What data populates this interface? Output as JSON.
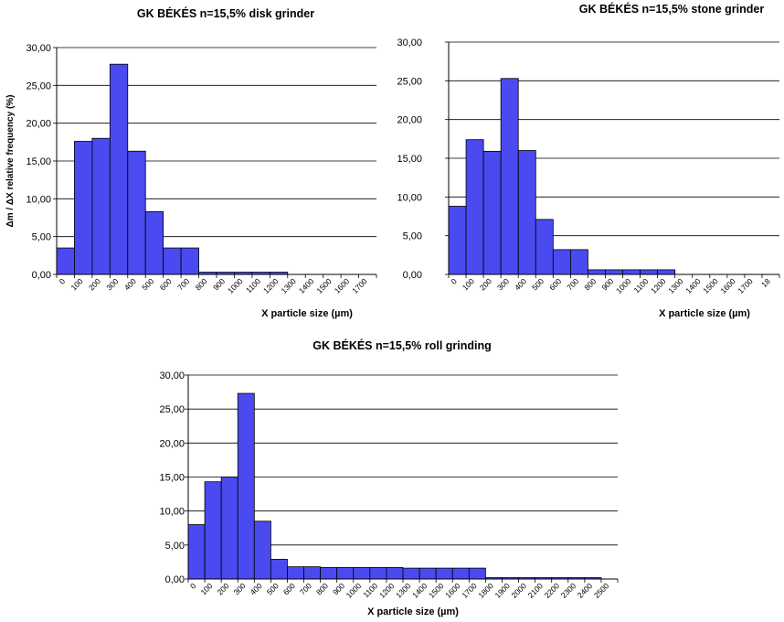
{
  "style": {
    "bar_color": "#4a4af0",
    "bar_stroke": "#000000",
    "grid_color": "#000000"
  },
  "chart_data": [
    {
      "type": "bar",
      "title": "GK BÉKÉS n=15,5% disk grinder",
      "xlabel": "X particle size (µm)",
      "ylabel": "Δm / ΔX relative frequency (%)",
      "ylim": [
        0,
        30
      ],
      "ytick_labels": [
        "0,00",
        "5,00",
        "10,00",
        "15,00",
        "20,00",
        "25,00",
        "30,00"
      ],
      "categories": [
        "0",
        "100",
        "200",
        "300",
        "400",
        "500",
        "600",
        "700",
        "800",
        "900",
        "1000",
        "1100",
        "1200",
        "1300",
        "1400",
        "1500",
        "1600",
        "1700"
      ],
      "values": [
        3.5,
        17.6,
        18.0,
        27.8,
        16.3,
        8.3,
        3.5,
        3.5,
        0.3,
        0.3,
        0.3,
        0.3,
        0.3,
        0,
        0,
        0,
        0,
        0
      ],
      "grid": true
    },
    {
      "type": "bar",
      "title": "GK BÉKÉS n=15,5% stone grinder",
      "xlabel": "X particle size (µm)",
      "ylabel": "",
      "ylim": [
        0,
        30
      ],
      "ytick_labels": [
        "0,00",
        "5,00",
        "10,00",
        "15,00",
        "20,00",
        "25,00",
        "30,00"
      ],
      "categories": [
        "0",
        "100",
        "200",
        "300",
        "400",
        "500",
        "600",
        "700",
        "800",
        "900",
        "1000",
        "1100",
        "1200",
        "1300",
        "1400",
        "1500",
        "1600",
        "1700",
        "18"
      ],
      "values": [
        8.8,
        17.4,
        15.9,
        25.3,
        16.0,
        7.1,
        3.2,
        3.2,
        0.6,
        0.6,
        0.6,
        0.6,
        0.6,
        0,
        0,
        0,
        0,
        0,
        0
      ],
      "grid": true
    },
    {
      "type": "bar",
      "title": "GK BÉKÉS n=15,5% roll grinding",
      "xlabel": "X particle size (µm)",
      "ylabel": "",
      "ylim": [
        0,
        30
      ],
      "ytick_labels": [
        "0,00",
        "5,00",
        "10,00",
        "15,00",
        "20,00",
        "25,00",
        "30,00"
      ],
      "categories": [
        "0",
        "100",
        "200",
        "300",
        "400",
        "500",
        "600",
        "700",
        "800",
        "900",
        "1000",
        "1100",
        "1200",
        "1300",
        "1400",
        "1500",
        "1600",
        "1700",
        "1800",
        "1900",
        "2000",
        "2100",
        "2200",
        "2300",
        "2400",
        "2500"
      ],
      "values": [
        8.0,
        14.3,
        15.0,
        27.3,
        8.5,
        2.9,
        1.8,
        1.8,
        1.7,
        1.7,
        1.7,
        1.7,
        1.7,
        1.6,
        1.6,
        1.6,
        1.6,
        1.6,
        0.2,
        0.2,
        0.2,
        0.2,
        0.2,
        0.2,
        0.2,
        0
      ],
      "grid": true
    }
  ]
}
